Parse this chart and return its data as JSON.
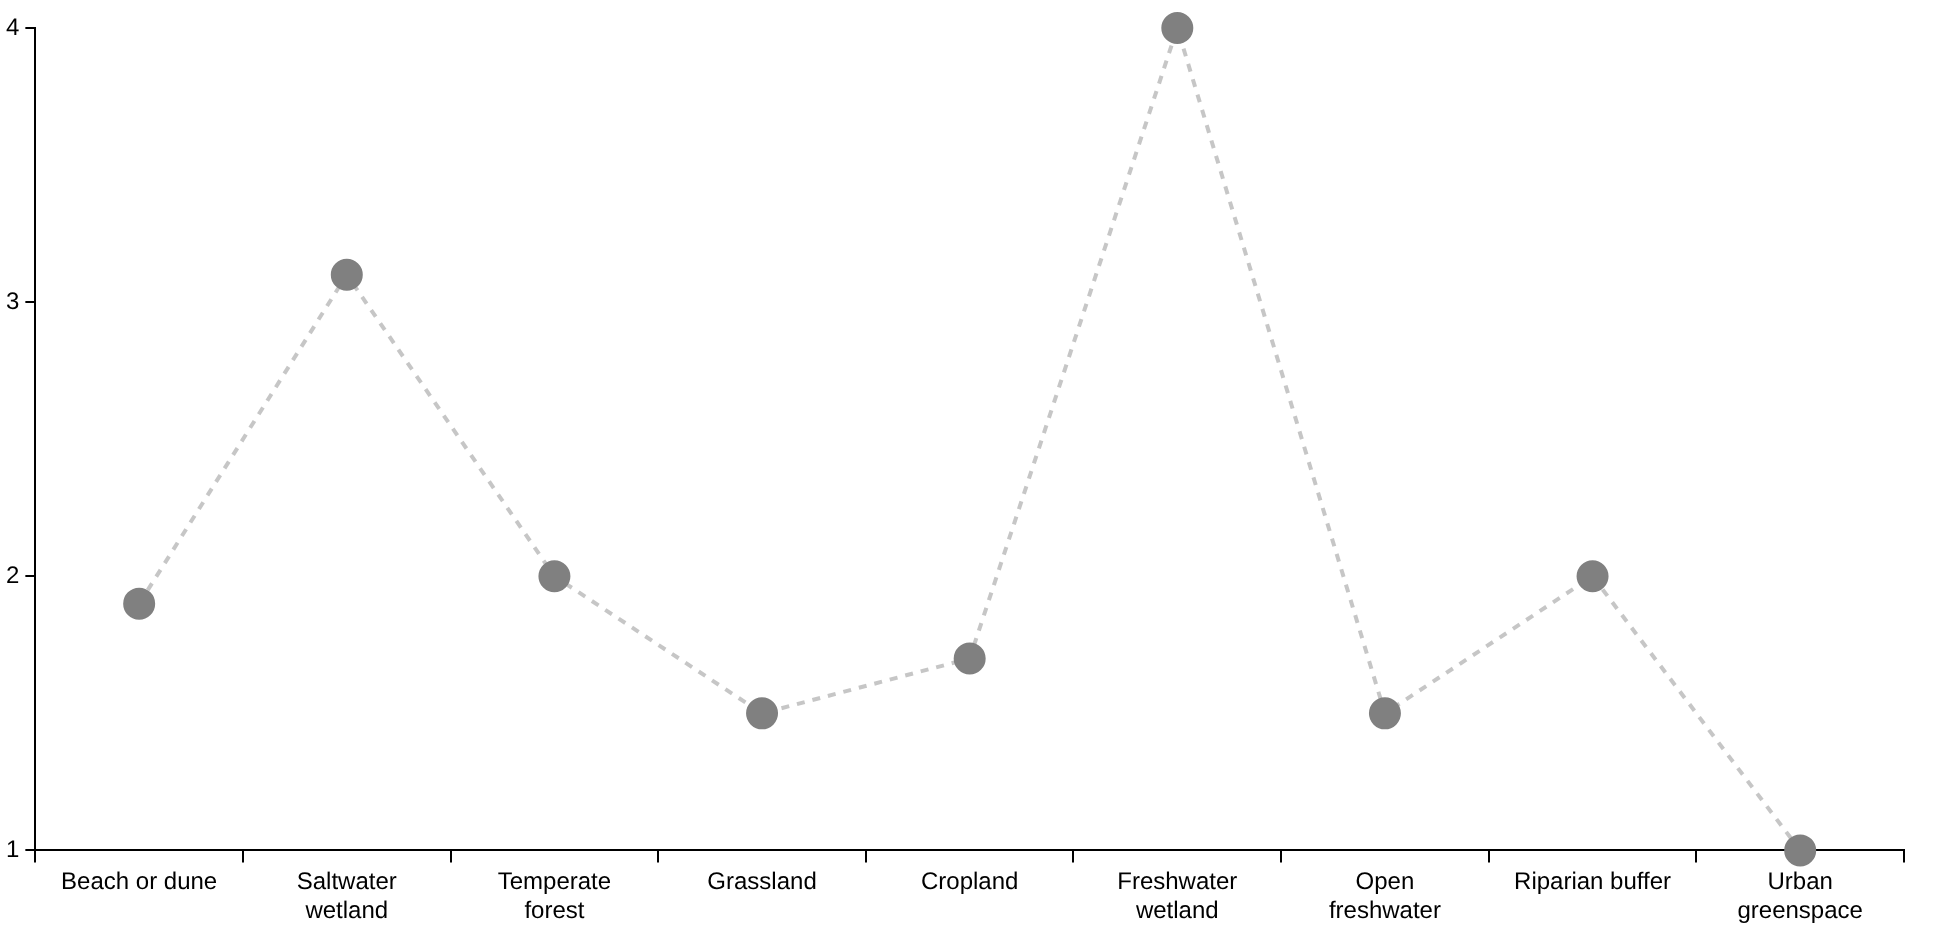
{
  "chart_data": {
    "type": "line",
    "categories": [
      "Beach or dune",
      "Saltwater wetland",
      "Temperate forest",
      "Grassland",
      "Cropland",
      "Freshwater wetland",
      "Open freshwater",
      "Riparian buffer",
      "Urban greenspace"
    ],
    "series": [
      {
        "color": "#808080",
        "values": [
          1.9,
          3.1,
          2.0,
          1.5,
          1.7,
          4.0,
          1.5,
          2.0,
          1.0
        ]
      }
    ],
    "ylim": [
      1,
      4
    ],
    "yticks": [
      1,
      2,
      3,
      4
    ],
    "grid": false,
    "legend": false,
    "marker": "circle",
    "line_style": "dashed"
  }
}
